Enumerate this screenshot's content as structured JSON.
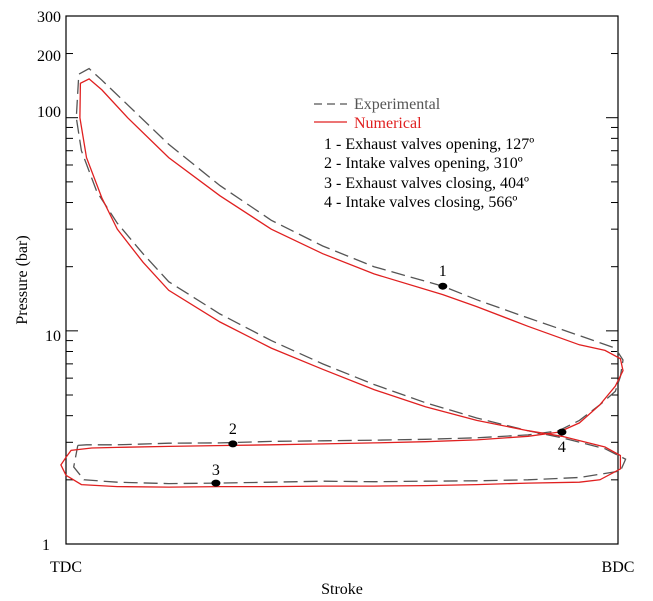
{
  "chart_data": {
    "type": "line",
    "xlabel": "Stroke",
    "ylabel": "Pressure (bar)",
    "x_scale": "linear",
    "y_scale": "log",
    "ylim": [
      1,
      300
    ],
    "y_ticks": [
      "1",
      "10",
      "100",
      "200",
      "300"
    ],
    "x_ticks": [
      "TDC",
      "BDC"
    ],
    "grid": false,
    "legend_position": "top-right",
    "colors": {
      "experimental": "#555555",
      "numerical": "#e02020"
    },
    "legend": [
      {
        "name": "Experimental",
        "style": "dashed"
      },
      {
        "name": "Numerical",
        "style": "solid"
      }
    ],
    "annotations": [
      {
        "id": "1",
        "text": "1 - Exhaust valves opening, 127º"
      },
      {
        "id": "2",
        "text": "2 - Intake valves opening, 310º"
      },
      {
        "id": "3",
        "text": "3 - Exhaust valves closing, 404º"
      },
      {
        "id": "4",
        "text": "4 - Intake valves closing, 566º"
      }
    ],
    "events": [
      {
        "label": "1",
        "x": 0.734,
        "y": 16.2
      },
      {
        "label": "2",
        "x": 0.325,
        "y": 2.95
      },
      {
        "label": "3",
        "x": 0.292,
        "y": 1.93
      },
      {
        "label": "4",
        "x": 0.966,
        "y": 3.35
      }
    ],
    "series": [
      {
        "name": "Experimental",
        "points": [
          [
            0.023,
            2.9
          ],
          [
            0.04,
            2.92
          ],
          [
            0.1,
            2.92
          ],
          [
            0.2,
            2.97
          ],
          [
            0.3,
            2.98
          ],
          [
            0.4,
            3.03
          ],
          [
            0.5,
            3.05
          ],
          [
            0.6,
            3.07
          ],
          [
            0.7,
            3.1
          ],
          [
            0.8,
            3.15
          ],
          [
            0.9,
            3.25
          ],
          [
            0.96,
            3.4
          ],
          [
            1.0,
            3.8
          ],
          [
            1.04,
            4.5
          ],
          [
            1.07,
            5.2
          ],
          [
            1.08,
            6.1
          ],
          [
            1.085,
            7.3
          ],
          [
            1.07,
            8.3
          ],
          [
            1.0,
            9.5
          ],
          [
            0.9,
            11.5
          ],
          [
            0.8,
            14.0
          ],
          [
            0.734,
            16.2
          ],
          [
            0.6,
            20.0
          ],
          [
            0.5,
            25.0
          ],
          [
            0.4,
            33.0
          ],
          [
            0.3,
            48.0
          ],
          [
            0.2,
            75.0
          ],
          [
            0.12,
            115.0
          ],
          [
            0.07,
            150.0
          ],
          [
            0.045,
            170.0
          ],
          [
            0.025,
            160.0
          ],
          [
            0.02,
            100.0
          ],
          [
            0.03,
            70.0
          ],
          [
            0.06,
            45.0
          ],
          [
            0.1,
            32.0
          ],
          [
            0.15,
            23.0
          ],
          [
            0.2,
            17.0
          ],
          [
            0.3,
            12.0
          ],
          [
            0.4,
            9.0
          ],
          [
            0.5,
            7.0
          ],
          [
            0.6,
            5.6
          ],
          [
            0.7,
            4.6
          ],
          [
            0.8,
            3.9
          ],
          [
            0.9,
            3.4
          ],
          [
            0.966,
            3.15
          ],
          [
            1.05,
            2.8
          ],
          [
            1.09,
            2.5
          ],
          [
            1.08,
            2.2
          ],
          [
            1.0,
            2.05
          ],
          [
            0.9,
            2.0
          ],
          [
            0.8,
            1.98
          ],
          [
            0.7,
            1.97
          ],
          [
            0.6,
            1.96
          ],
          [
            0.5,
            1.97
          ],
          [
            0.4,
            1.95
          ],
          [
            0.292,
            1.93
          ],
          [
            0.2,
            1.92
          ],
          [
            0.1,
            1.95
          ],
          [
            0.035,
            2.0
          ],
          [
            0.015,
            2.3
          ],
          [
            0.023,
            2.9
          ]
        ]
      },
      {
        "name": "Numerical",
        "points": [
          [
            0.0,
            2.55
          ],
          [
            0.01,
            2.75
          ],
          [
            0.05,
            2.82
          ],
          [
            0.1,
            2.84
          ],
          [
            0.2,
            2.87
          ],
          [
            0.325,
            2.9
          ],
          [
            0.4,
            2.92
          ],
          [
            0.5,
            2.95
          ],
          [
            0.6,
            2.98
          ],
          [
            0.7,
            3.02
          ],
          [
            0.8,
            3.08
          ],
          [
            0.9,
            3.2
          ],
          [
            0.96,
            3.35
          ],
          [
            1.0,
            3.7
          ],
          [
            1.04,
            4.5
          ],
          [
            1.07,
            5.5
          ],
          [
            1.085,
            6.5
          ],
          [
            1.08,
            7.4
          ],
          [
            1.05,
            8.1
          ],
          [
            1.0,
            8.6
          ],
          [
            0.9,
            10.5
          ],
          [
            0.8,
            13.0
          ],
          [
            0.734,
            14.8
          ],
          [
            0.6,
            18.5
          ],
          [
            0.5,
            23.0
          ],
          [
            0.4,
            30.0
          ],
          [
            0.3,
            43.0
          ],
          [
            0.2,
            65.0
          ],
          [
            0.12,
            100.0
          ],
          [
            0.07,
            135.0
          ],
          [
            0.045,
            152.0
          ],
          [
            0.028,
            145.0
          ],
          [
            0.027,
            100.0
          ],
          [
            0.04,
            65.0
          ],
          [
            0.07,
            42.0
          ],
          [
            0.1,
            30.0
          ],
          [
            0.15,
            21.0
          ],
          [
            0.2,
            15.5
          ],
          [
            0.3,
            11.0
          ],
          [
            0.4,
            8.3
          ],
          [
            0.5,
            6.6
          ],
          [
            0.6,
            5.3
          ],
          [
            0.7,
            4.4
          ],
          [
            0.8,
            3.8
          ],
          [
            0.9,
            3.4
          ],
          [
            0.966,
            3.2
          ],
          [
            1.05,
            2.85
          ],
          [
            1.08,
            2.6
          ],
          [
            1.08,
            2.25
          ],
          [
            1.04,
            2.0
          ],
          [
            1.0,
            1.95
          ],
          [
            0.9,
            1.93
          ],
          [
            0.8,
            1.9
          ],
          [
            0.7,
            1.88
          ],
          [
            0.6,
            1.87
          ],
          [
            0.5,
            1.87
          ],
          [
            0.4,
            1.86
          ],
          [
            0.3,
            1.86
          ],
          [
            0.2,
            1.85
          ],
          [
            0.1,
            1.86
          ],
          [
            0.03,
            1.9
          ],
          [
            0.0,
            2.1
          ],
          [
            -0.01,
            2.35
          ],
          [
            0.0,
            2.55
          ]
        ]
      }
    ]
  }
}
